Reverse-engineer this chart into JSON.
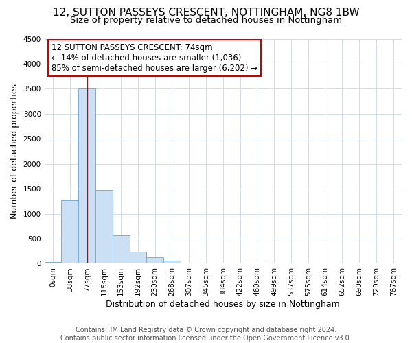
{
  "title": "12, SUTTON PASSEYS CRESCENT, NOTTINGHAM, NG8 1BW",
  "subtitle": "Size of property relative to detached houses in Nottingham",
  "xlabel": "Distribution of detached houses by size in Nottingham",
  "ylabel": "Number of detached properties",
  "bin_labels": [
    "0sqm",
    "38sqm",
    "77sqm",
    "115sqm",
    "153sqm",
    "192sqm",
    "230sqm",
    "268sqm",
    "307sqm",
    "345sqm",
    "384sqm",
    "422sqm",
    "460sqm",
    "499sqm",
    "537sqm",
    "575sqm",
    "614sqm",
    "652sqm",
    "690sqm",
    "729sqm",
    "767sqm"
  ],
  "bar_heights": [
    30,
    1270,
    3500,
    1480,
    570,
    240,
    130,
    65,
    15,
    5,
    0,
    0,
    20,
    0,
    0,
    0,
    0,
    0,
    0,
    0,
    0
  ],
  "bar_color": "#cce0f5",
  "bar_edge_color": "#7bafd4",
  "subject_bin_index": 2,
  "subject_line_color": "#cc0000",
  "annotation_text_line1": "12 SUTTON PASSEYS CRESCENT: 74sqm",
  "annotation_text_line2": "← 14% of detached houses are smaller (1,036)",
  "annotation_text_line3": "85% of semi-detached houses are larger (6,202) →",
  "annotation_box_color": "#ffffff",
  "annotation_border_color": "#cc0000",
  "ylim": [
    0,
    4500
  ],
  "footer_line1": "Contains HM Land Registry data © Crown copyright and database right 2024.",
  "footer_line2": "Contains public sector information licensed under the Open Government Licence v3.0.",
  "background_color": "#ffffff",
  "grid_color": "#d0dce8",
  "title_fontsize": 11,
  "subtitle_fontsize": 9.5,
  "axis_label_fontsize": 9,
  "tick_fontsize": 7.5,
  "annotation_fontsize": 8.5,
  "footer_fontsize": 7
}
